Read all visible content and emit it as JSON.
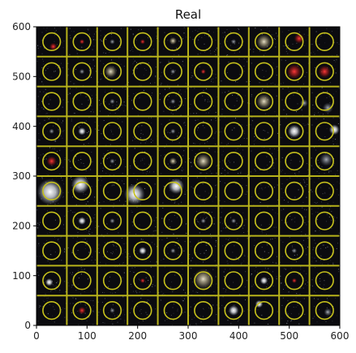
{
  "figure": {
    "title": "Real",
    "x_ticks": [
      "0",
      "100",
      "200",
      "300",
      "400",
      "500",
      "600"
    ],
    "y_ticks": [
      "0",
      "100",
      "200",
      "300",
      "400",
      "500",
      "600"
    ],
    "colors": {
      "background": "#0b0b0f",
      "grid": "#b7b21a",
      "circle": "#c7c21c",
      "axis": "#000000"
    },
    "grid": {
      "rows": 10,
      "cols": 10,
      "xlim": [
        0,
        600
      ],
      "ylim": [
        0,
        600
      ]
    }
  }
}
